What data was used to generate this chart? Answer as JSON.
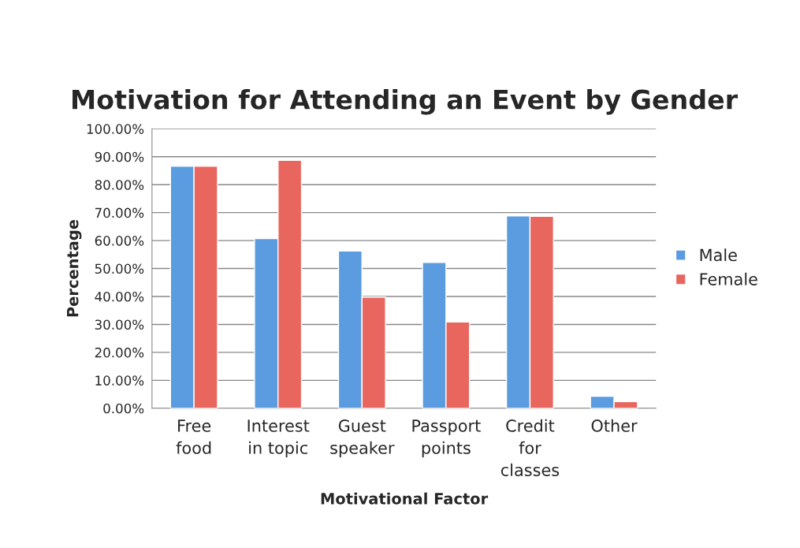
{
  "chart_data": {
    "type": "bar",
    "title": "Motivation for Attending an Event by Gender",
    "xlabel": "Motivational Factor",
    "ylabel": "Percentage",
    "categories": [
      "Free\nfood",
      "Interest\nin topic",
      "Guest\nspeaker",
      "Passport\npoints",
      "Credit\nfor\nclasses",
      "Other"
    ],
    "series": [
      {
        "name": "Male",
        "color": "#5b9be0",
        "values": [
          86.6,
          60.7,
          56.3,
          52.2,
          68.8,
          4.3
        ]
      },
      {
        "name": "Female",
        "color": "#e9665f",
        "values": [
          86.6,
          88.7,
          39.8,
          30.9,
          68.7,
          2.4
        ]
      }
    ],
    "ylim": [
      0,
      100
    ],
    "yticks": [
      {
        "value": 0,
        "label": "0.00%"
      },
      {
        "value": 10,
        "label": "10.00%"
      },
      {
        "value": 20,
        "label": "20.00%"
      },
      {
        "value": 30,
        "label": "30.00%"
      },
      {
        "value": 40,
        "label": "40.00%"
      },
      {
        "value": 50,
        "label": "50.00%"
      },
      {
        "value": 60,
        "label": "60.00%"
      },
      {
        "value": 70,
        "label": "70.00%"
      },
      {
        "value": 80,
        "label": "80.00%"
      },
      {
        "value": 90,
        "label": "90.00%"
      },
      {
        "value": 100,
        "label": "100.00%"
      }
    ],
    "grid": "y",
    "legend": "right"
  }
}
